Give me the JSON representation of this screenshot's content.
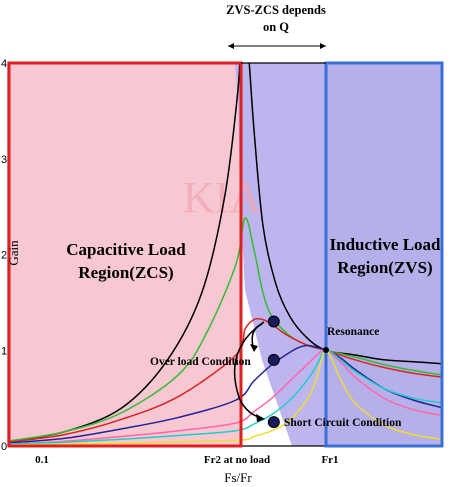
{
  "chart_data": {
    "type": "line",
    "title": "ZVS-ZCS depends on Q",
    "xlabel": "Fs/Fr",
    "ylabel": "Gain",
    "xlim": [
      0.1,
      1.4
    ],
    "ylim": [
      0,
      4
    ],
    "x_tick_labels": [
      {
        "x": 0.1,
        "label": "0.1"
      },
      {
        "x": 0.5,
        "label": "Fr2 at no load"
      },
      {
        "x": 1.0,
        "label": "Fr1"
      }
    ],
    "y_ticks": [
      0,
      1,
      2,
      3,
      4
    ],
    "regions": [
      {
        "label": "Capacitive Load Region(ZCS)",
        "x_range": [
          0.1,
          0.54
        ],
        "color": "#f7c7d2",
        "border": "#e02020"
      },
      {
        "label": "Inductive Load Region(ZVS)",
        "x_range": [
          1.0,
          1.4
        ],
        "color": "#b6b0ea",
        "border": "#3a6fd8"
      }
    ],
    "series": [
      {
        "color": "#000000",
        "x": [
          0.1,
          0.2,
          0.3,
          0.38,
          0.44,
          0.48,
          0.51,
          0.53,
          0.56,
          0.6,
          0.65,
          0.72,
          0.8,
          0.9,
          1.0,
          1.1,
          1.2,
          1.3,
          1.4
        ],
        "values": [
          0.05,
          0.15,
          0.4,
          0.9,
          1.6,
          2.6,
          3.7,
          4.3,
          4.3,
          3.3,
          2.3,
          1.7,
          1.35,
          1.12,
          1.0,
          0.95,
          0.9,
          0.88,
          0.86
        ]
      },
      {
        "color": "#33bb33",
        "x": [
          0.1,
          0.2,
          0.3,
          0.4,
          0.45,
          0.5,
          0.55,
          0.6,
          0.65,
          0.7,
          0.8,
          0.9,
          1.0,
          1.1,
          1.2,
          1.3,
          1.4
        ],
        "values": [
          0.05,
          0.15,
          0.35,
          0.75,
          1.2,
          1.9,
          2.38,
          2.05,
          1.6,
          1.35,
          1.15,
          1.05,
          1.0,
          0.93,
          0.85,
          0.79,
          0.74
        ]
      },
      {
        "color": "#dd2222",
        "x": [
          0.1,
          0.2,
          0.3,
          0.4,
          0.5,
          0.55,
          0.6,
          0.65,
          0.7,
          0.75,
          0.8,
          0.9,
          1.0,
          1.1,
          1.2,
          1.3,
          1.4
        ],
        "values": [
          0.04,
          0.12,
          0.28,
          0.52,
          0.95,
          1.22,
          1.32,
          1.32,
          1.27,
          1.2,
          1.14,
          1.05,
          1.0,
          0.9,
          0.82,
          0.76,
          0.72
        ]
      },
      {
        "color": "#222299",
        "x": [
          0.1,
          0.2,
          0.3,
          0.4,
          0.5,
          0.6,
          0.7,
          0.8,
          0.85,
          0.9,
          0.95,
          1.0,
          1.05,
          1.1,
          1.2,
          1.3,
          1.4
        ],
        "values": [
          0.03,
          0.08,
          0.18,
          0.3,
          0.48,
          0.68,
          0.85,
          0.98,
          1.03,
          1.05,
          1.03,
          1.0,
          0.92,
          0.8,
          0.6,
          0.48,
          0.4
        ]
      },
      {
        "color": "#ff66aa",
        "x": [
          0.1,
          0.2,
          0.3,
          0.4,
          0.5,
          0.6,
          0.7,
          0.8,
          0.9,
          0.95,
          1.0,
          1.05,
          1.1,
          1.2,
          1.3,
          1.4
        ],
        "values": [
          0.02,
          0.05,
          0.1,
          0.16,
          0.24,
          0.36,
          0.5,
          0.68,
          0.86,
          0.95,
          1.0,
          0.88,
          0.72,
          0.5,
          0.38,
          0.32
        ]
      },
      {
        "color": "#22cccc",
        "x": [
          0.1,
          0.2,
          0.3,
          0.4,
          0.5,
          0.6,
          0.7,
          0.8,
          0.9,
          0.95,
          1.0,
          1.05,
          1.1,
          1.2,
          1.3,
          1.4
        ],
        "values": [
          0.02,
          0.04,
          0.07,
          0.11,
          0.16,
          0.23,
          0.33,
          0.48,
          0.7,
          0.85,
          1.0,
          0.9,
          0.78,
          0.6,
          0.5,
          0.45
        ]
      },
      {
        "color": "#eedd33",
        "x": [
          0.1,
          0.3,
          0.5,
          0.6,
          0.7,
          0.8,
          0.9,
          0.95,
          1.0,
          1.05,
          1.1,
          1.2,
          1.3,
          1.4
        ],
        "values": [
          0.01,
          0.03,
          0.06,
          0.1,
          0.16,
          0.27,
          0.5,
          0.72,
          1.0,
          0.7,
          0.45,
          0.22,
          0.12,
          0.07
        ]
      }
    ],
    "markers": [
      {
        "x": 0.71,
        "y": 1.3
      },
      {
        "x": 0.71,
        "y": 0.9
      },
      {
        "x": 0.71,
        "y": 0.25
      }
    ],
    "annotations": {
      "capacitive": [
        "Capacitive Load",
        "Region(ZCS)"
      ],
      "inductive": [
        "Inductive Load",
        "Region(ZVS)"
      ],
      "resonance": "Resonance",
      "over_load": "Over load Condition",
      "short_circuit": "Short Circuit Condition",
      "title_lines": [
        "ZVS-ZCS depends",
        "on Q"
      ]
    },
    "watermark": "KIA"
  }
}
